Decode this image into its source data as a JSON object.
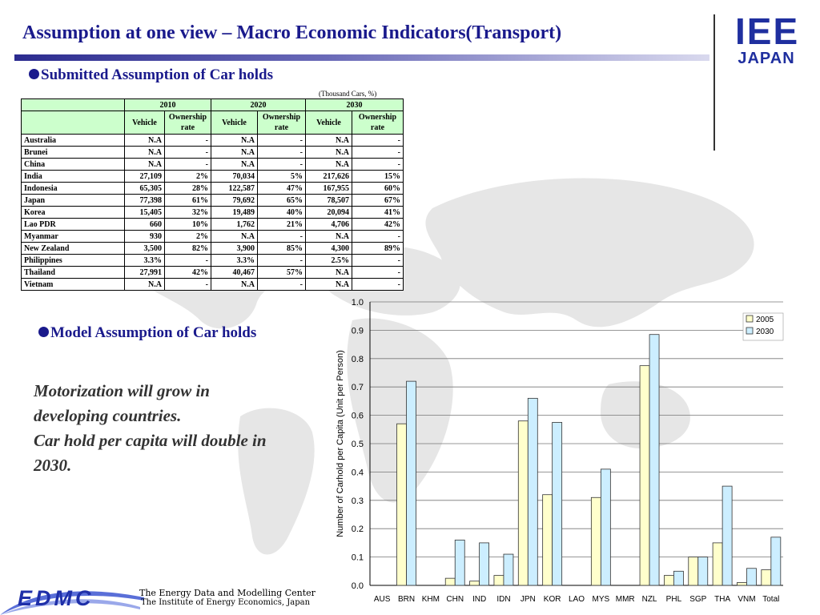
{
  "title": "Assumption at one view – Macro Economic Indicators(Transport)",
  "logo": {
    "line1": "IEE",
    "line2": "JAPAN"
  },
  "section1": {
    "heading": "Submitted Assumption of Car holds"
  },
  "table": {
    "unit_note": "(Thousand Cars, %)",
    "years": [
      "2010",
      "2020",
      "2030"
    ],
    "col_vehicle": "Vehicle",
    "col_rate": "Ownership rate",
    "rows": [
      [
        "Australia",
        "N.A",
        "-",
        "N.A",
        "-",
        "N.A",
        "-"
      ],
      [
        "Brunei",
        "N.A",
        "-",
        "N.A",
        "-",
        "N.A",
        "-"
      ],
      [
        "China",
        "N.A",
        "-",
        "N.A",
        "-",
        "N.A",
        "-"
      ],
      [
        "India",
        "27,109",
        "2%",
        "70,034",
        "5%",
        "217,626",
        "15%"
      ],
      [
        "Indonesia",
        "65,305",
        "28%",
        "122,587",
        "47%",
        "167,955",
        "60%"
      ],
      [
        "Japan",
        "77,398",
        "61%",
        "79,692",
        "65%",
        "78,507",
        "67%"
      ],
      [
        "Korea",
        "15,405",
        "32%",
        "19,489",
        "40%",
        "20,094",
        "41%"
      ],
      [
        "Lao PDR",
        "660",
        "10%",
        "1,762",
        "21%",
        "4,706",
        "42%"
      ],
      [
        "Myanmar",
        "930",
        "2%",
        "N.A",
        "-",
        "N.A",
        "-"
      ],
      [
        "New Zealand",
        "3,500",
        "82%",
        "3,900",
        "85%",
        "4,300",
        "89%"
      ],
      [
        "Philippines",
        "3.3%",
        "-",
        "3.3%",
        "-",
        "2.5%",
        "-"
      ],
      [
        "Thailand",
        "27,991",
        "42%",
        "40,467",
        "57%",
        "N.A",
        "-"
      ],
      [
        "Vietnam",
        "N.A",
        "-",
        "N.A",
        "-",
        "N.A",
        "-"
      ]
    ]
  },
  "section2": {
    "heading": "Model Assumption of Car holds"
  },
  "statement": {
    "line1": "Motorization will grow in",
    "line2": "developing countries.",
    "line3": "Car hold per capita will double in",
    "line4": "2030."
  },
  "chart_data": {
    "type": "bar",
    "categories": [
      "AUS",
      "BRN",
      "KHM",
      "CHN",
      "IND",
      "IDN",
      "JPN",
      "KOR",
      "LAO",
      "MYS",
      "MMR",
      "NZL",
      "PHL",
      "SGP",
      "THA",
      "VNM",
      "Total"
    ],
    "series": [
      {
        "name": "2005",
        "values": [
          0,
          0.57,
          0,
          0.025,
          0.015,
          0.035,
          0.58,
          0.32,
          0,
          0.31,
          0,
          0.775,
          0.035,
          0.1,
          0.15,
          0.01,
          0.055
        ]
      },
      {
        "name": "2030",
        "values": [
          0,
          0.72,
          0,
          0.16,
          0.15,
          0.11,
          0.66,
          0.575,
          0,
          0.41,
          0,
          0.885,
          0.05,
          0.1,
          0.35,
          0.06,
          0.17
        ]
      }
    ],
    "ylabel": "Number of Carhold per Capita (Unit per Person)",
    "ylim": [
      0,
      1.0
    ],
    "yticks": [
      "0.0",
      "0.1",
      "0.2",
      "0.3",
      "0.4",
      "0.5",
      "0.6",
      "0.7",
      "0.8",
      "0.9",
      "1.0"
    ],
    "grid": true,
    "legend": "top-right",
    "colors": {
      "2005": "#ffffcc",
      "2030": "#cceeff"
    }
  },
  "footer": {
    "logo": "EDMC",
    "line1": "The Energy Data and Modelling Center",
    "line2": "The Institute of Energy Economics, Japan"
  }
}
